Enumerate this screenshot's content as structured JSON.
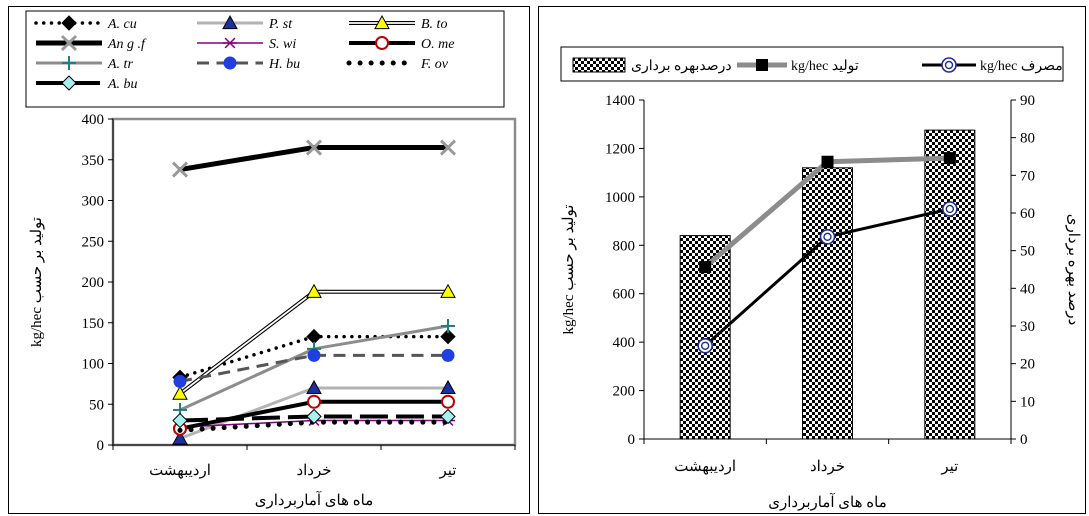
{
  "charts": {
    "left": {
      "type": "line",
      "categories": [
        "اردیبهشت",
        "خرداد",
        "تیر"
      ],
      "xlabel": "ماه های آماربرداری",
      "ylabel": "kg/hec تولید بر حسب",
      "ylim": [
        0,
        400
      ],
      "yticks": [
        "0",
        "50",
        "100",
        "150",
        "200",
        "250",
        "300",
        "350",
        "400"
      ],
      "legend_position": "top",
      "series": [
        {
          "name": "A. cu",
          "values": [
            83,
            133,
            133
          ],
          "color": "#000000",
          "dash": "dots",
          "width": 3.5,
          "marker": "diamond",
          "marker_fill": "#000000"
        },
        {
          "name": "P. st",
          "values": [
            8,
            70,
            70
          ],
          "color": "#b3b3b3",
          "dash": "solid",
          "width": 3,
          "marker": "triangle",
          "marker_fill": "#1f2f9f"
        },
        {
          "name": "B. to",
          "values": [
            63,
            188,
            188
          ],
          "color": "#000000",
          "dash": "double",
          "width": 1.2,
          "marker": "triangle",
          "marker_fill": "#ffff00"
        },
        {
          "name": "An g .f",
          "values": [
            338,
            365,
            365
          ],
          "color": "#000000",
          "dash": "solid",
          "width": 5,
          "marker": "x",
          "marker_fill": "#999999"
        },
        {
          "name": "S. wi",
          "values": [
            22,
            30,
            30
          ],
          "color": "#800080",
          "dash": "solid",
          "width": 1.5,
          "marker": "star",
          "marker_fill": "#800080"
        },
        {
          "name": "O. me",
          "values": [
            20,
            53,
            53
          ],
          "color": "#000000",
          "dash": "solid",
          "width": 4,
          "marker": "circle-open",
          "marker_fill": "#c00000"
        },
        {
          "name": "A. tr",
          "values": [
            43,
            118,
            146
          ],
          "color": "#8c8c8c",
          "dash": "solid",
          "width": 3,
          "marker": "plus",
          "marker_fill": "#1f7f7f"
        },
        {
          "name": "H. bu",
          "values": [
            78,
            110,
            110
          ],
          "color": "#555555",
          "dash": "dash",
          "width": 3,
          "marker": "circle",
          "marker_fill": "#1f3fdf"
        },
        {
          "name": "F. ov",
          "values": [
            18,
            28,
            28
          ],
          "color": "#000000",
          "dash": "dots",
          "width": 5,
          "marker": "none",
          "marker_fill": "#000000"
        },
        {
          "name": "A. bu",
          "values": [
            30,
            35,
            35
          ],
          "color": "#000000",
          "dash": "longdash",
          "width": 4,
          "marker": "diamond",
          "marker_fill": "#a8f0f0"
        }
      ]
    },
    "right": {
      "type": "bar",
      "categories": [
        "اردیبهشت",
        "خرداد",
        "تیر"
      ],
      "xlabel": "ماه های آماربرداری",
      "ylabel_left": "kg/hec تولید بر حسب",
      "ylabel_right": "درصد بهره برداری",
      "ylim_left": [
        0,
        1400
      ],
      "ylim_right": [
        0,
        90
      ],
      "yticks_left": [
        "0",
        "200",
        "400",
        "600",
        "800",
        "1000",
        "1200",
        "1400"
      ],
      "yticks_right": [
        "0",
        "10",
        "20",
        "30",
        "40",
        "50",
        "60",
        "70",
        "80",
        "90"
      ],
      "legend_position": "top",
      "bars": {
        "name": "درصدبهره برداری",
        "values": [
          54,
          72,
          82
        ]
      },
      "series": [
        {
          "name": "kg/hec تولید",
          "values": [
            710,
            1145,
            1160
          ],
          "color": "#8c8c8c",
          "width": 5,
          "marker": "square"
        },
        {
          "name": "kg/hec مصرف",
          "values": [
            385,
            835,
            950
          ],
          "color": "#000000",
          "width": 3,
          "marker": "circle-target"
        }
      ]
    }
  }
}
